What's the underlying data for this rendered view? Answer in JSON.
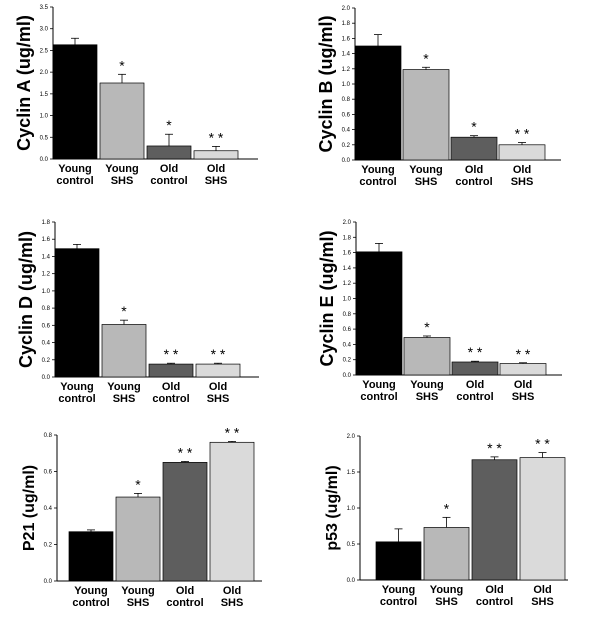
{
  "colors": {
    "young_control": "#000000",
    "young_shs": "#b8b8b8",
    "old_control": "#5e5e5e",
    "old_shs": "#dadada"
  },
  "chart_data": [
    {
      "type": "bar",
      "ylabel": "Cyclin A (ug/ml)",
      "ylim": [
        0,
        3.5
      ],
      "yticks": [
        "0.0",
        "0.5",
        "1.0",
        "1.5",
        "2.0",
        "2.5",
        "3.0",
        "3.5"
      ],
      "categories": [
        [
          "Young",
          "control"
        ],
        [
          "Young",
          "SHS"
        ],
        [
          "Old",
          "control"
        ],
        [
          "Old",
          "SHS"
        ]
      ],
      "values": [
        2.63,
        1.75,
        0.3,
        0.19
      ],
      "errors": [
        0.15,
        0.2,
        0.27,
        0.1
      ],
      "significance": [
        "",
        "*",
        "*",
        "* *"
      ]
    },
    {
      "type": "bar",
      "ylabel": "Cyclin B (ug/ml)",
      "ylim": [
        0,
        2.0
      ],
      "yticks": [
        "0.0",
        "0.2",
        "0.4",
        "0.6",
        "0.8",
        "1.0",
        "1.2",
        "1.4",
        "1.6",
        "1.8",
        "2.0"
      ],
      "categories": [
        [
          "Young",
          "control"
        ],
        [
          "Young",
          "SHS"
        ],
        [
          "Old",
          "control"
        ],
        [
          "Old",
          "SHS"
        ]
      ],
      "values": [
        1.5,
        1.19,
        0.3,
        0.2
      ],
      "errors": [
        0.15,
        0.03,
        0.02,
        0.03
      ],
      "significance": [
        "",
        "*",
        "*",
        "* *"
      ]
    },
    {
      "type": "bar",
      "ylabel": "Cyclin D (ug/ml)",
      "ylim": [
        0,
        1.8
      ],
      "yticks": [
        "0.0",
        "0.2",
        "0.4",
        "0.6",
        "0.8",
        "1.0",
        "1.2",
        "1.4",
        "1.6",
        "1.8"
      ],
      "categories": [
        [
          "Young",
          "control"
        ],
        [
          "Young",
          "SHS"
        ],
        [
          "Old",
          "control"
        ],
        [
          "Old",
          "SHS"
        ]
      ],
      "values": [
        1.49,
        0.61,
        0.15,
        0.15
      ],
      "errors": [
        0.05,
        0.05,
        0.01,
        0.01
      ],
      "significance": [
        "",
        "*",
        "* *",
        "* *"
      ]
    },
    {
      "type": "bar",
      "ylabel": "Cyclin E (ug/ml)",
      "ylim": [
        0,
        2.0
      ],
      "yticks": [
        "0.0",
        "0.2",
        "0.4",
        "0.6",
        "0.8",
        "1.0",
        "1.2",
        "1.4",
        "1.6",
        "1.8",
        "2.0"
      ],
      "categories": [
        [
          "Young",
          "control"
        ],
        [
          "Young",
          "SHS"
        ],
        [
          "Old",
          "control"
        ],
        [
          "Old",
          "SHS"
        ]
      ],
      "values": [
        1.61,
        0.49,
        0.17,
        0.15
      ],
      "errors": [
        0.11,
        0.02,
        0.01,
        0.01
      ],
      "significance": [
        "",
        "*",
        "* *",
        "* *"
      ]
    },
    {
      "type": "bar",
      "ylabel": "P21 (ug/ml)",
      "ylim": [
        0,
        0.8
      ],
      "yticks": [
        "0.0",
        "0.2",
        "0.4",
        "0.6",
        "0.8"
      ],
      "categories": [
        [
          "Young",
          "control"
        ],
        [
          "Young",
          "SHS"
        ],
        [
          "Old",
          "control"
        ],
        [
          "Old",
          "SHS"
        ]
      ],
      "values": [
        0.27,
        0.46,
        0.65,
        0.76
      ],
      "errors": [
        0.01,
        0.02,
        0.005,
        0.005
      ],
      "significance": [
        "",
        "*",
        "* *",
        "* *"
      ]
    },
    {
      "type": "bar",
      "ylabel": "p53 (ug/ml)",
      "ylim": [
        0,
        2.0
      ],
      "yticks": [
        "0.0",
        "0.5",
        "1.0",
        "1.5",
        "2.0"
      ],
      "categories": [
        [
          "Young",
          "control"
        ],
        [
          "Young",
          "SHS"
        ],
        [
          "Old",
          "control"
        ],
        [
          "Old",
          "SHS"
        ]
      ],
      "values": [
        0.53,
        0.73,
        1.67,
        1.7
      ],
      "errors": [
        0.18,
        0.14,
        0.04,
        0.07
      ],
      "significance": [
        "",
        "*",
        "* *",
        "* *"
      ]
    }
  ]
}
